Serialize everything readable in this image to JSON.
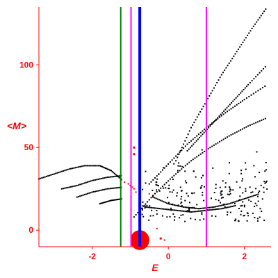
{
  "chart_data": {
    "type": "scatter",
    "xlabel": "E",
    "ylabel": "<M>",
    "xlim": [
      -3.4,
      2.7
    ],
    "ylim": [
      -10,
      135
    ],
    "x_ticks": [
      -2,
      0,
      2
    ],
    "y_ticks": [
      0,
      50,
      100
    ],
    "colors": {
      "axis": "#ff0000",
      "black_points": "#000000",
      "red_points": "#ff0000",
      "green_line": "#008000",
      "magenta_line": "#ff00ff",
      "blue_line": "#0000ff"
    },
    "vertical_lines": [
      {
        "x": -1.25,
        "color": "#008000"
      },
      {
        "x": -0.98,
        "color": "#ff00ff"
      },
      {
        "x": -0.75,
        "color": "#0000ff",
        "bold": true
      },
      {
        "x": 1.0,
        "color": "#ff00ff"
      }
    ],
    "series": [
      {
        "color": "#000000",
        "curves": [
          {
            "x": [
              0.2,
              0.6,
              1.0,
              1.4,
              1.8,
              2.2,
              2.6
            ],
            "y": [
              42,
              62,
              78,
              94,
              108,
              122,
              135
            ]
          },
          {
            "x": [
              0.5,
              0.9,
              1.3,
              1.7,
              2.1,
              2.6
            ],
            "y": [
              48,
              58,
              68,
              78,
              88,
              100
            ]
          },
          {
            "x": [
              -0.5,
              0.0,
              0.5,
              1.0,
              1.5,
              2.0,
              2.6
            ],
            "y": [
              28,
              40,
              52,
              62,
              71,
              79,
              88
            ]
          },
          {
            "x": [
              -0.9,
              -0.4,
              0.1,
              0.6,
              1.1,
              1.6,
              2.1,
              2.6
            ],
            "y": [
              8,
              21,
              32,
              42,
              50,
              57,
              63,
              68
            ]
          },
          {
            "x": [
              -3.4,
              -3.0,
              -2.6,
              -2.2,
              -1.8,
              -1.5,
              -1.2
            ],
            "y": [
              31,
              34,
              37,
              39,
              39,
              36,
              30
            ]
          },
          {
            "x": [
              -2.8,
              -2.4,
              -2.0,
              -1.6,
              -1.2
            ],
            "y": [
              25,
              27,
              30,
              32,
              33
            ]
          },
          {
            "x": [
              -2.4,
              -2.0,
              -1.6,
              -1.2
            ],
            "y": [
              20,
              23,
              25,
              26
            ]
          },
          {
            "x": [
              -1.8,
              -1.5,
              -1.2
            ],
            "y": [
              16,
              18,
              19
            ]
          },
          {
            "x": [
              -0.6,
              -0.2,
              0.2,
              0.6,
              1.0,
              1.4,
              1.8
            ],
            "y": [
              14,
              13,
              12,
              11,
              12,
              13,
              15
            ]
          },
          {
            "x": [
              -0.4,
              0.0,
              0.4,
              0.8,
              1.2,
              1.6,
              2.0,
              2.4
            ],
            "y": [
              20,
              16,
              14,
              13,
              14,
              16,
              19,
              22
            ]
          }
        ],
        "scatter": {
          "x_range": [
            -0.7,
            2.6
          ],
          "y_range": [
            5,
            50
          ],
          "count": 220
        }
      },
      {
        "color": "#ff0000",
        "points": [
          {
            "x": -0.9,
            "y": 50,
            "s": 3
          },
          {
            "x": -0.9,
            "y": 46,
            "s": 3
          },
          {
            "x": -1.15,
            "y": 29,
            "s": 2
          },
          {
            "x": -1.05,
            "y": 28,
            "s": 2
          },
          {
            "x": -1.0,
            "y": 27,
            "s": 2
          },
          {
            "x": -0.95,
            "y": 26,
            "s": 2
          },
          {
            "x": -0.9,
            "y": 25,
            "s": 2
          },
          {
            "x": -0.85,
            "y": 23,
            "s": 2
          },
          {
            "x": -0.5,
            "y": 22,
            "s": 2
          },
          {
            "x": -0.3,
            "y": 1,
            "s": 2
          },
          {
            "x": -0.2,
            "y": -5,
            "s": 3
          },
          {
            "x": -0.1,
            "y": -6,
            "s": 2
          }
        ],
        "blob": {
          "x": -0.75,
          "y": -6,
          "r_x": 0.25,
          "r_y": 6.0
        }
      }
    ]
  }
}
